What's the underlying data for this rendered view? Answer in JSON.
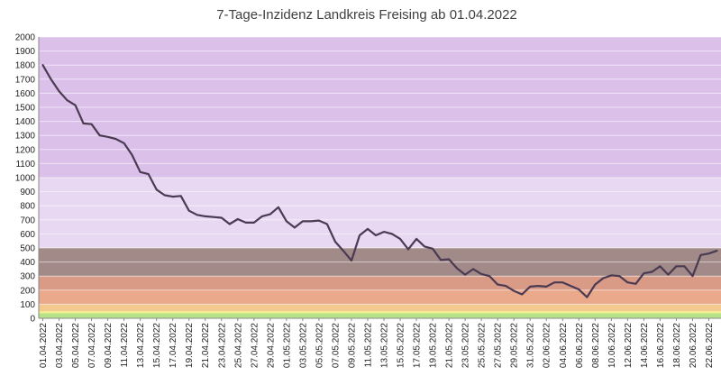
{
  "chart_data": {
    "type": "line",
    "title": "7-Tage-Inzidenz Landkreis Freising ab 01.04.2022",
    "ylim": [
      0,
      2000
    ],
    "yticks": [
      0,
      100,
      200,
      300,
      400,
      500,
      600,
      700,
      800,
      900,
      1000,
      1100,
      1200,
      1300,
      1400,
      1500,
      1600,
      1700,
      1800,
      1900,
      2000
    ],
    "grid": true,
    "x_tick_labels": [
      "01.04.2022",
      "03.04.2022",
      "05.04.2022",
      "07.04.2022",
      "09.04.2022",
      "11.04.2022",
      "13.04.2022",
      "15.04.2022",
      "17.04.2022",
      "19.04.2022",
      "21.04.2022",
      "23.04.2022",
      "25.04.2022",
      "27.04.2022",
      "29.04.2022",
      "01.05.2022",
      "03.05.2022",
      "05.05.2022",
      "07.05.2022",
      "09.05.2022",
      "11.05.2022",
      "13.05.2022",
      "15.05.2022",
      "17.05.2022",
      "19.05.2022",
      "21.05.2022",
      "23.05.2022",
      "25.05.2022",
      "27.05.2022",
      "29.05.2022",
      "31.05.2022",
      "02.06.2022",
      "04.06.2022",
      "06.06.2022",
      "08.06.2022",
      "10.06.2022",
      "12.06.2022",
      "14.06.2022",
      "16.06.2022",
      "18.06.2022",
      "20.06.2022",
      "22.06.2022"
    ],
    "bands": [
      {
        "from": 0,
        "to": 35,
        "color": "#b5e38a"
      },
      {
        "from": 35,
        "to": 50,
        "color": "#f2ef8a"
      },
      {
        "from": 50,
        "to": 100,
        "color": "#f3c98e"
      },
      {
        "from": 100,
        "to": 200,
        "color": "#eaa98a"
      },
      {
        "from": 200,
        "to": 300,
        "color": "#d99a86"
      },
      {
        "from": 300,
        "to": 500,
        "color": "#a18a88"
      },
      {
        "from": 500,
        "to": 1000,
        "color": "#e8d8f1"
      },
      {
        "from": 1000,
        "to": 2000,
        "color": "#dbc1ea"
      }
    ],
    "line_color": "#4a3a52",
    "series": [
      {
        "values": [
          1800,
          1700,
          1615,
          1550,
          1515,
          1385,
          1380,
          1300,
          1290,
          1275,
          1245,
          1160,
          1040,
          1025,
          915,
          875,
          865,
          870,
          765,
          735,
          725,
          720,
          715,
          670,
          705,
          680,
          680,
          725,
          740,
          790,
          690,
          645,
          690,
          690,
          695,
          670,
          545,
          480,
          410,
          590,
          635,
          590,
          615,
          600,
          565,
          490,
          565,
          510,
          495,
          415,
          420,
          355,
          310,
          350,
          315,
          300,
          240,
          230,
          195,
          170,
          225,
          230,
          225,
          255,
          255,
          230,
          205,
          150,
          240,
          285,
          305,
          300,
          255,
          245,
          320,
          330,
          370,
          310,
          370,
          370,
          300,
          450,
          460,
          480
        ]
      }
    ]
  }
}
